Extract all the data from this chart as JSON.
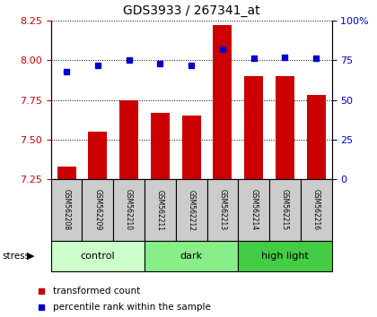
{
  "title": "GDS3933 / 267341_at",
  "samples": [
    "GSM562208",
    "GSM562209",
    "GSM562210",
    "GSM562211",
    "GSM562212",
    "GSM562213",
    "GSM562214",
    "GSM562215",
    "GSM562216"
  ],
  "transformed_count": [
    7.33,
    7.55,
    7.75,
    7.67,
    7.65,
    8.22,
    7.9,
    7.9,
    7.78
  ],
  "percentile_rank": [
    68,
    72,
    75,
    73,
    72,
    82,
    76,
    77,
    76
  ],
  "groups": [
    {
      "label": "control",
      "indices": [
        0,
        1,
        2
      ],
      "color": "#ccffcc"
    },
    {
      "label": "dark",
      "indices": [
        3,
        4,
        5
      ],
      "color": "#88ee88"
    },
    {
      "label": "high light",
      "indices": [
        6,
        7,
        8
      ],
      "color": "#44cc44"
    }
  ],
  "ylim_left": [
    7.25,
    8.25
  ],
  "ylim_right": [
    0,
    100
  ],
  "yticks_left": [
    7.25,
    7.5,
    7.75,
    8.0,
    8.25
  ],
  "yticks_right": [
    0,
    25,
    50,
    75,
    100
  ],
  "bar_color": "#cc0000",
  "dot_color": "#0000cc",
  "bar_width": 0.6,
  "background_color": "#ffffff",
  "sample_box_color": "#cccccc",
  "stress_label": "stress",
  "legend_bar": "transformed count",
  "legend_dot": "percentile rank within the sample"
}
